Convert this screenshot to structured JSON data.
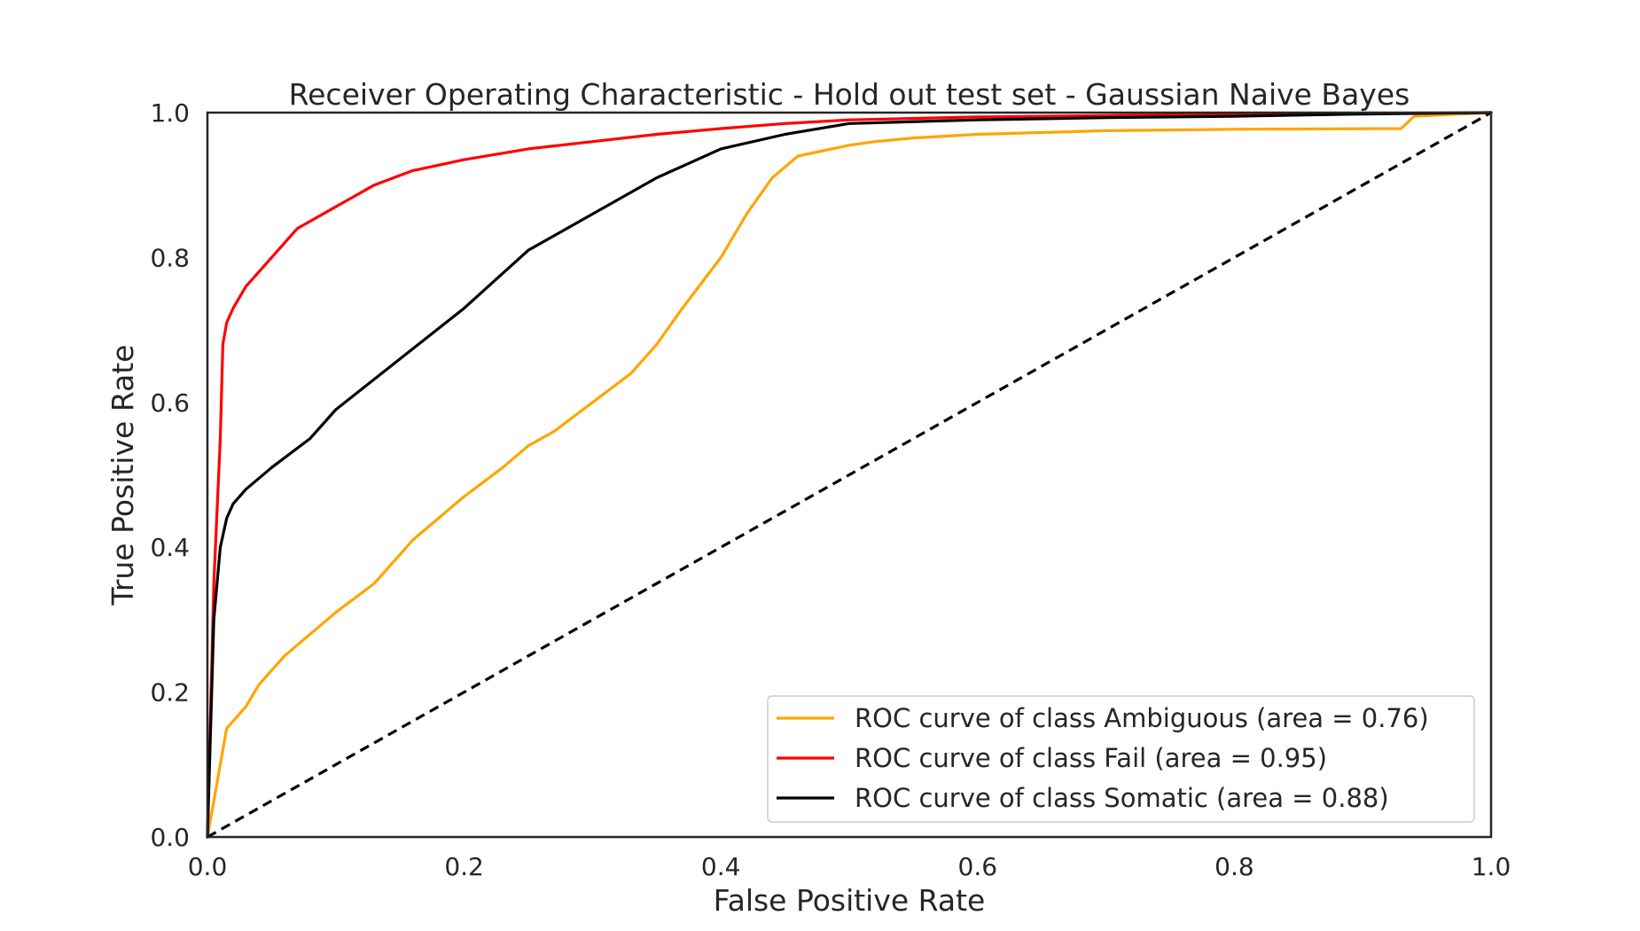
{
  "chart_data": {
    "type": "line",
    "title": "Receiver Operating Characteristic - Hold out test set - Gaussian Naive Bayes",
    "xlabel": "False Positive Rate",
    "ylabel": "True Positive Rate",
    "xlim": [
      0.0,
      1.0
    ],
    "ylim": [
      0.0,
      1.0
    ],
    "xticks": [
      "0.0",
      "0.2",
      "0.4",
      "0.6",
      "0.8",
      "1.0"
    ],
    "yticks": [
      "0.0",
      "0.2",
      "0.4",
      "0.6",
      "0.8",
      "1.0"
    ],
    "grid": false,
    "legend_position": "lower-right",
    "series": [
      {
        "name": "ROC curve of class Ambiguous (area = 0.76)",
        "color": "#ffa500",
        "x": [
          0.0,
          0.015,
          0.02,
          0.03,
          0.04,
          0.06,
          0.08,
          0.1,
          0.13,
          0.15,
          0.16,
          0.18,
          0.2,
          0.23,
          0.25,
          0.27,
          0.3,
          0.33,
          0.35,
          0.37,
          0.4,
          0.42,
          0.44,
          0.46,
          0.5,
          0.52,
          0.55,
          0.6,
          0.7,
          0.8,
          0.93,
          0.94,
          1.0
        ],
        "y": [
          0.0,
          0.15,
          0.16,
          0.18,
          0.21,
          0.25,
          0.28,
          0.31,
          0.35,
          0.39,
          0.41,
          0.44,
          0.47,
          0.51,
          0.54,
          0.56,
          0.6,
          0.64,
          0.68,
          0.73,
          0.8,
          0.86,
          0.91,
          0.94,
          0.955,
          0.96,
          0.965,
          0.97,
          0.975,
          0.977,
          0.978,
          0.995,
          1.0
        ]
      },
      {
        "name": "ROC curve of class Fail (area = 0.95)",
        "color": "#ff0000",
        "x": [
          0.0,
          0.005,
          0.01,
          0.012,
          0.015,
          0.02,
          0.03,
          0.05,
          0.07,
          0.1,
          0.13,
          0.16,
          0.2,
          0.25,
          0.3,
          0.35,
          0.4,
          0.45,
          0.5,
          0.6,
          0.7,
          0.8,
          0.9,
          1.0
        ],
        "y": [
          0.0,
          0.35,
          0.55,
          0.68,
          0.71,
          0.73,
          0.76,
          0.8,
          0.84,
          0.87,
          0.9,
          0.92,
          0.935,
          0.95,
          0.96,
          0.97,
          0.978,
          0.985,
          0.99,
          0.994,
          0.996,
          0.998,
          0.999,
          1.0
        ]
      },
      {
        "name": "ROC curve of class Somatic (area = 0.88)",
        "color": "#000000",
        "x": [
          0.0,
          0.005,
          0.01,
          0.015,
          0.02,
          0.03,
          0.05,
          0.08,
          0.1,
          0.15,
          0.2,
          0.25,
          0.3,
          0.35,
          0.4,
          0.45,
          0.5,
          0.6,
          0.7,
          0.8,
          0.9,
          1.0
        ],
        "y": [
          0.0,
          0.3,
          0.4,
          0.44,
          0.46,
          0.48,
          0.51,
          0.55,
          0.59,
          0.66,
          0.73,
          0.81,
          0.86,
          0.91,
          0.95,
          0.97,
          0.985,
          0.99,
          0.993,
          0.995,
          0.998,
          1.0
        ]
      }
    ],
    "reference_line": {
      "x": [
        0.0,
        1.0
      ],
      "y": [
        0.0,
        1.0
      ],
      "color": "#000000",
      "style": "dashed"
    }
  }
}
